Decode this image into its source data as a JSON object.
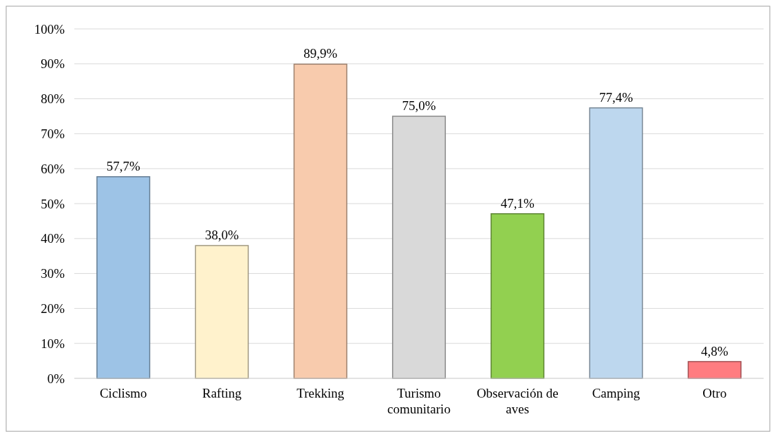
{
  "chart_data": {
    "type": "bar",
    "categories": [
      "Ciclismo",
      "Rafting",
      "Trekking",
      "Turismo comunitario",
      "Observación de aves",
      "Camping",
      "Otro"
    ],
    "values": [
      57.7,
      38.0,
      89.9,
      75.0,
      47.1,
      77.4,
      4.8
    ],
    "colors": [
      "#9dc3e6",
      "#fff2cc",
      "#f8cbad",
      "#d9d9d9",
      "#92d050",
      "#bdd7ee",
      "#ff7c80"
    ],
    "value_labels": [
      "57,7%",
      "38,0%",
      "89,9%",
      "75,0%",
      "47,1%",
      "77,4%",
      "4,8%"
    ],
    "ylim": [
      0,
      100
    ],
    "yticks": [
      {
        "value": 0,
        "label": "0%"
      },
      {
        "value": 10,
        "label": "10%"
      },
      {
        "value": 20,
        "label": "20%"
      },
      {
        "value": 30,
        "label": "30%"
      },
      {
        "value": 40,
        "label": "40%"
      },
      {
        "value": 50,
        "label": "50%"
      },
      {
        "value": 60,
        "label": "60%"
      },
      {
        "value": 70,
        "label": "70%"
      },
      {
        "value": 80,
        "label": "80%"
      },
      {
        "value": 90,
        "label": "90%"
      },
      {
        "value": 100,
        "label": "100%"
      }
    ],
    "grid": "y"
  }
}
